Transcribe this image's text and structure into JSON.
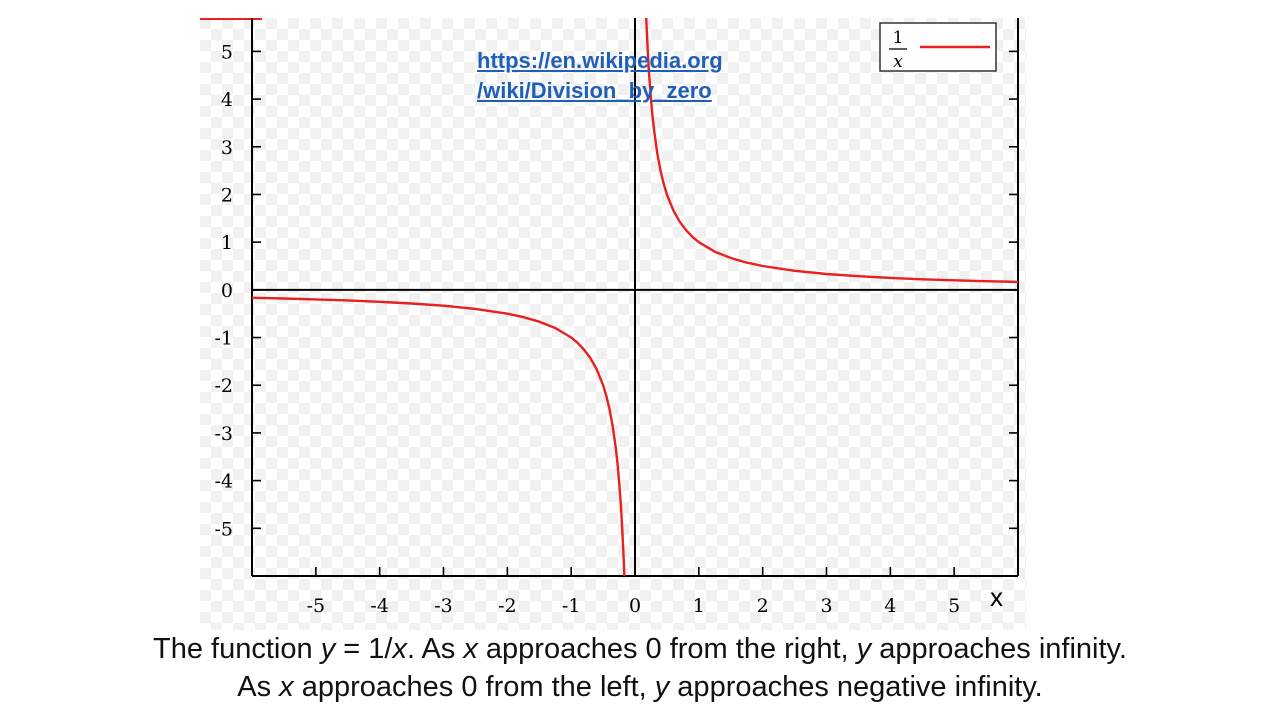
{
  "source_link": {
    "line1": "https://en.wikipedia.org",
    "line2": "/wiki/Division_by_zero"
  },
  "axis_letter": "x",
  "caption": {
    "line1": [
      {
        "t": "The function ",
        "i": false
      },
      {
        "t": "y",
        "i": true
      },
      {
        "t": " = 1/",
        "i": false
      },
      {
        "t": "x",
        "i": true
      },
      {
        "t": ". As ",
        "i": false
      },
      {
        "t": "x",
        "i": true
      },
      {
        "t": " approaches  0 from the right, ",
        "i": false
      },
      {
        "t": "y",
        "i": true
      },
      {
        "t": " approaches  infinity.",
        "i": false
      }
    ],
    "line2": [
      {
        "t": "As ",
        "i": false
      },
      {
        "t": "x",
        "i": true
      },
      {
        "t": " approaches  0 from the left, ",
        "i": false
      },
      {
        "t": "y",
        "i": true
      },
      {
        "t": " approaches  negative  infinity.",
        "i": false
      }
    ]
  },
  "chart_data": {
    "type": "line",
    "function": "1/x",
    "xlim": [
      -6,
      6
    ],
    "ylim": [
      -6,
      5.7
    ],
    "x_ticks": [
      -5,
      -4,
      -3,
      -2,
      -1,
      0,
      1,
      2,
      3,
      4,
      5
    ],
    "y_ticks": [
      5,
      4,
      3,
      2,
      1,
      0,
      -1,
      -2,
      -3,
      -4,
      -5
    ],
    "grid": false,
    "legend": {
      "position": "top-right",
      "numerator": "1",
      "denominator": "x"
    },
    "series": [
      {
        "color": "#e8201f",
        "points": [
          [
            -6.0,
            -0.167
          ],
          [
            -5.5,
            -0.182
          ],
          [
            -5.0,
            -0.2
          ],
          [
            -4.5,
            -0.222
          ],
          [
            -4.0,
            -0.25
          ],
          [
            -3.5,
            -0.286
          ],
          [
            -3.0,
            -0.333
          ],
          [
            -2.5,
            -0.4
          ],
          [
            -2.0,
            -0.5
          ],
          [
            -1.75,
            -0.571
          ],
          [
            -1.5,
            -0.667
          ],
          [
            -1.25,
            -0.8
          ],
          [
            -1.0,
            -1.0
          ],
          [
            -0.9,
            -1.111
          ],
          [
            -0.8,
            -1.25
          ],
          [
            -0.7,
            -1.429
          ],
          [
            -0.6,
            -1.667
          ],
          [
            -0.5,
            -2.0
          ],
          [
            -0.45,
            -2.222
          ],
          [
            -0.4,
            -2.5
          ],
          [
            -0.35,
            -2.857
          ],
          [
            -0.3,
            -3.333
          ],
          [
            -0.27,
            -3.704
          ],
          [
            -0.25,
            -4.0
          ],
          [
            -0.22,
            -4.545
          ],
          [
            -0.2,
            -5.0
          ],
          [
            -0.18,
            -5.556
          ],
          [
            -0.166,
            -6.0
          ]
        ]
      },
      {
        "color": "#e8201f",
        "points": [
          [
            0.176,
            5.7
          ],
          [
            0.18,
            5.556
          ],
          [
            0.2,
            5.0
          ],
          [
            0.22,
            4.545
          ],
          [
            0.25,
            4.0
          ],
          [
            0.27,
            3.704
          ],
          [
            0.3,
            3.333
          ],
          [
            0.35,
            2.857
          ],
          [
            0.4,
            2.5
          ],
          [
            0.45,
            2.222
          ],
          [
            0.5,
            2.0
          ],
          [
            0.6,
            1.667
          ],
          [
            0.7,
            1.429
          ],
          [
            0.8,
            1.25
          ],
          [
            0.9,
            1.111
          ],
          [
            1.0,
            1.0
          ],
          [
            1.25,
            0.8
          ],
          [
            1.5,
            0.667
          ],
          [
            1.75,
            0.571
          ],
          [
            2.0,
            0.5
          ],
          [
            2.5,
            0.4
          ],
          [
            3.0,
            0.333
          ],
          [
            3.5,
            0.286
          ],
          [
            4.0,
            0.25
          ],
          [
            4.5,
            0.222
          ],
          [
            5.0,
            0.2
          ],
          [
            5.5,
            0.182
          ],
          [
            6.0,
            0.167
          ]
        ]
      }
    ]
  }
}
